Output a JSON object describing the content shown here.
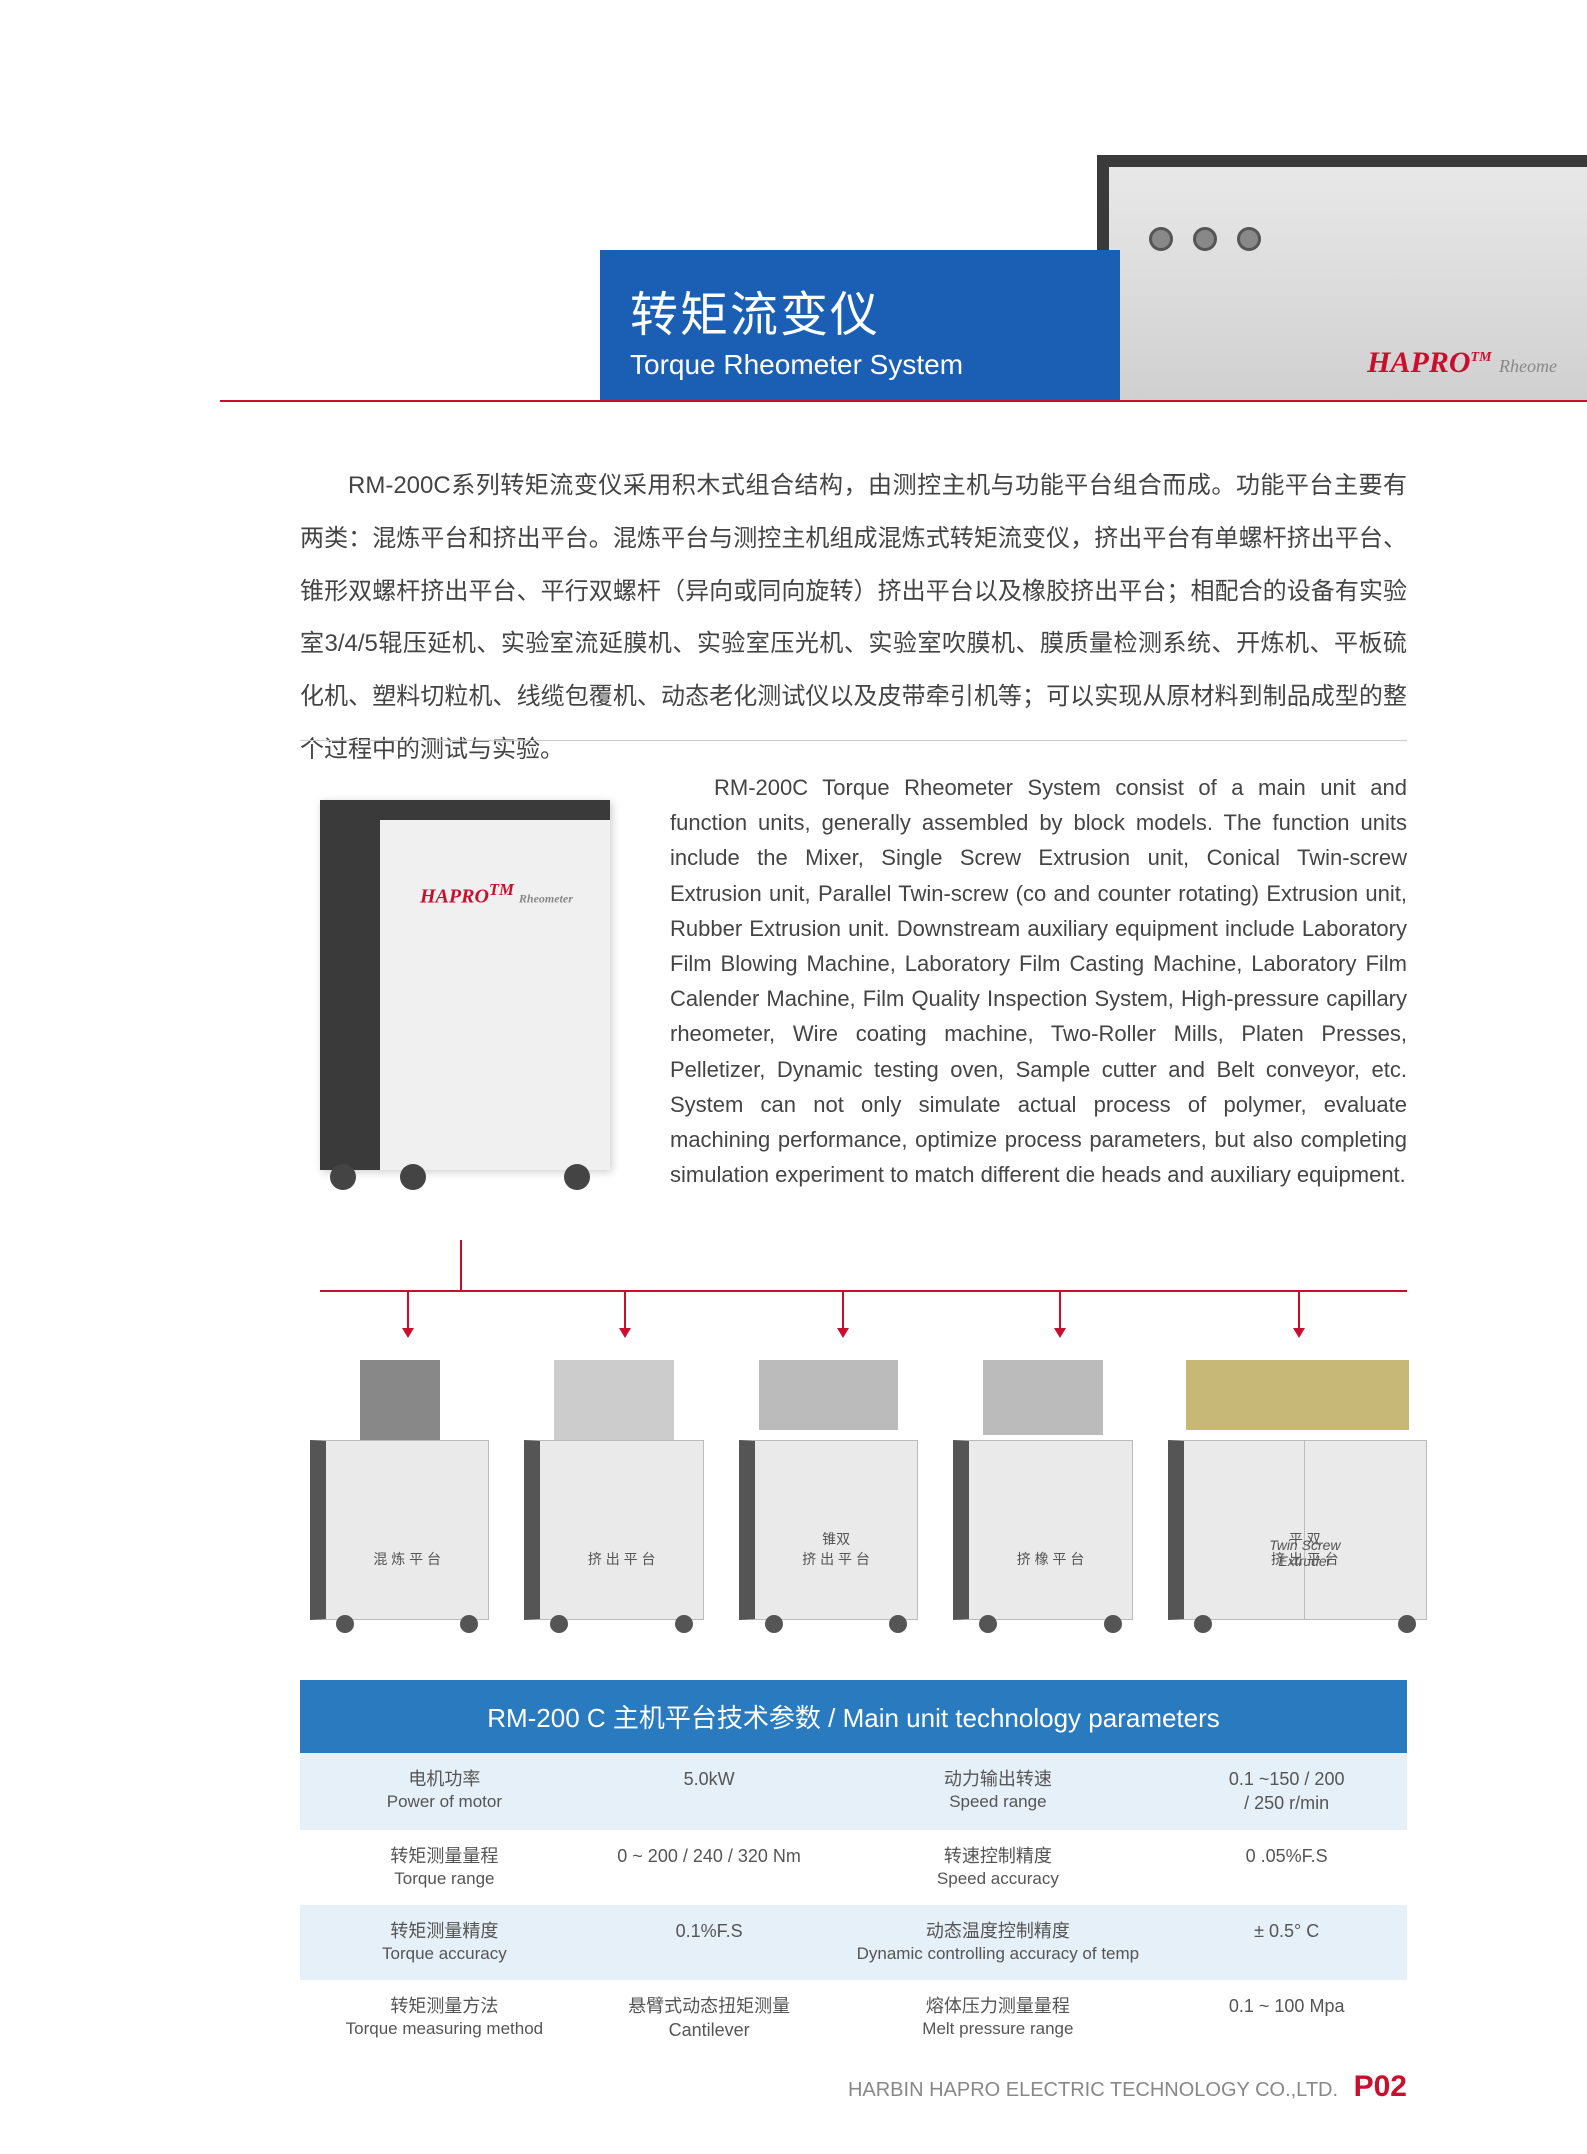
{
  "header": {
    "title_cn": "转矩流变仪",
    "title_en": "Torque Rheometer System",
    "brand": "HAPRO",
    "brand_sup": "TM",
    "brand_sub": "Rheome"
  },
  "main_unit_brand": "HAPRO",
  "main_unit_brand_sub": "Rheometer",
  "cn_paragraph": "RM-200C系列转矩流变仪采用积木式组合结构，由测控主机与功能平台组合而成。功能平台主要有两类：混炼平台和挤出平台。混炼平台与测控主机组成混炼式转矩流变仪，挤出平台有单螺杆挤出平台、锥形双螺杆挤出平台、平行双螺杆（异向或同向旋转）挤出平台以及橡胶挤出平台；相配合的设备有实验室3/4/5辊压延机、实验室流延膜机、实验室压光机、实验室吹膜机、膜质量检测系统、开炼机、平板硫化机、塑料切粒机、线缆包覆机、动态老化测试仪以及皮带牵引机等；可以实现从原材料到制品成型的整个过程中的测试与实验。",
  "en_paragraph": "RM-200C Torque Rheometer System consist of a main unit and function units, generally assembled by block models. The function units include the Mixer, Single Screw Extrusion unit, Conical Twin-screw Extrusion unit, Parallel Twin-screw (co and counter rotating) Extrusion unit, Rubber Extrusion unit. Downstream auxiliary equipment include Laboratory Film Blowing Machine, Laboratory Film Casting Machine, Laboratory Film Calender Machine, Film Quality Inspection System, High-pressure capillary rheometer, Wire coating machine, Two-Roller Mills, Platen Presses, Pelletizer, Dynamic testing oven, Sample cutter and Belt conveyor, etc. System can not only simulate actual process of polymer, evaluate machining performance, optimize process parameters, but also completing simulation experiment to match different die heads and auxiliary equipment.",
  "unit_labels": [
    "混 炼 平 台",
    "挤 出 平 台",
    "锥双\n挤 出 平 台",
    "挤 橡 平 台",
    "平 双\n挤 出 平 台"
  ],
  "unit5_sub": "Twin Screw\nExtruder",
  "params": {
    "title": "RM-200 C 主机平台技术参数 / Main unit technology parameters",
    "rows": [
      {
        "l1_cn": "电机功率",
        "l1_en": "Power of motor",
        "v1": "5.0kW",
        "l2_cn": "动力输出转速",
        "l2_en": "Speed range",
        "v2": "0.1 ~150 / 200\n/ 250 r/min"
      },
      {
        "l1_cn": "转矩测量量程",
        "l1_en": "Torque range",
        "v1": "0 ~ 200 / 240 / 320 Nm",
        "l2_cn": "转速控制精度",
        "l2_en": "Speed accuracy",
        "v2": "0 .05%F.S"
      },
      {
        "l1_cn": "转矩测量精度",
        "l1_en": "Torque accuracy",
        "v1": "0.1%F.S",
        "l2_cn": "动态温度控制精度",
        "l2_en": "Dynamic controlling accuracy of temp",
        "v2": "± 0.5°  C"
      },
      {
        "l1_cn": "转矩测量方法",
        "l1_en": "Torque measuring method",
        "v1": "悬臂式动态扭矩测量\nCantilever",
        "l2_cn": "熔体压力测量量程",
        "l2_en": "Melt pressure range",
        "v2": "0.1 ~ 100 Mpa"
      }
    ]
  },
  "footer": {
    "company": "HARBIN HAPRO ELECTRIC TECHNOLOGY CO.,LTD.",
    "page_prefix": "P",
    "page_num": "02"
  },
  "colors": {
    "accent_red": "#c8102e",
    "banner_blue": "#1a5fb4",
    "table_header_blue": "#2a7ac0",
    "table_row_tint": "#e6f0f8"
  }
}
